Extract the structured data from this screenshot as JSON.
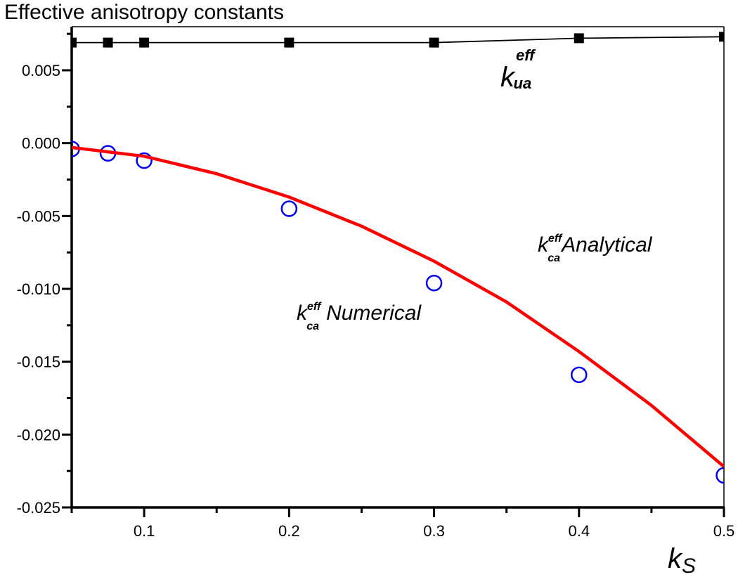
{
  "chart_data": {
    "type": "line",
    "title": "Effective anisotropy constants",
    "xlabel": "k",
    "xlabel_sub": "S",
    "ylabel": "",
    "xlim": [
      0.05,
      0.5
    ],
    "ylim": [
      -0.025,
      0.0075
    ],
    "xticks": [
      0.1,
      0.2,
      0.3,
      0.4,
      0.5
    ],
    "xtick_labels": [
      "0.1",
      "0.2",
      "0.3",
      "0.4",
      "0.5"
    ],
    "yticks": [
      0.005,
      0.0,
      -0.005,
      -0.01,
      -0.015,
      -0.02,
      -0.025
    ],
    "ytick_labels": [
      "0.005",
      "0.000",
      "-0.005",
      "-0.010",
      "-0.015",
      "-0.020",
      "-0.025"
    ],
    "grid": false,
    "series": [
      {
        "name": "k_ua eff",
        "style": "line+square",
        "color": "#000000",
        "x": [
          0.05,
          0.075,
          0.1,
          0.2,
          0.3,
          0.4,
          0.5
        ],
        "y": [
          0.0069,
          0.0069,
          0.0069,
          0.0069,
          0.0069,
          0.0072,
          0.0073
        ]
      },
      {
        "name": "k_ca eff Numerical",
        "style": "open-circle",
        "color": "#0000ee",
        "x": [
          0.05,
          0.075,
          0.1,
          0.2,
          0.3,
          0.4,
          0.5
        ],
        "y": [
          -0.0004,
          -0.0007,
          -0.0012,
          -0.0045,
          -0.0096,
          -0.0159,
          -0.0228
        ]
      },
      {
        "name": "k_ca eff Analytical",
        "style": "line",
        "color": "#ff0000",
        "x": [
          0.05,
          0.1,
          0.15,
          0.2,
          0.25,
          0.3,
          0.35,
          0.4,
          0.45,
          0.5
        ],
        "y": [
          -0.0003,
          -0.0009,
          -0.0021,
          -0.0037,
          -0.0057,
          -0.0081,
          -0.0109,
          -0.0143,
          -0.018,
          -0.0222
        ]
      }
    ],
    "annotations": [
      {
        "id": "kua",
        "base": "k",
        "sup": "eff",
        "sub": "ua",
        "text": ""
      },
      {
        "id": "kca-analytical",
        "base": "k",
        "sup": "eff",
        "sub": "ca",
        "text": "Analytical"
      },
      {
        "id": "kca-numerical",
        "base": "k",
        "sup": "eff",
        "sub": "ca",
        "text": "Numerical"
      }
    ]
  }
}
